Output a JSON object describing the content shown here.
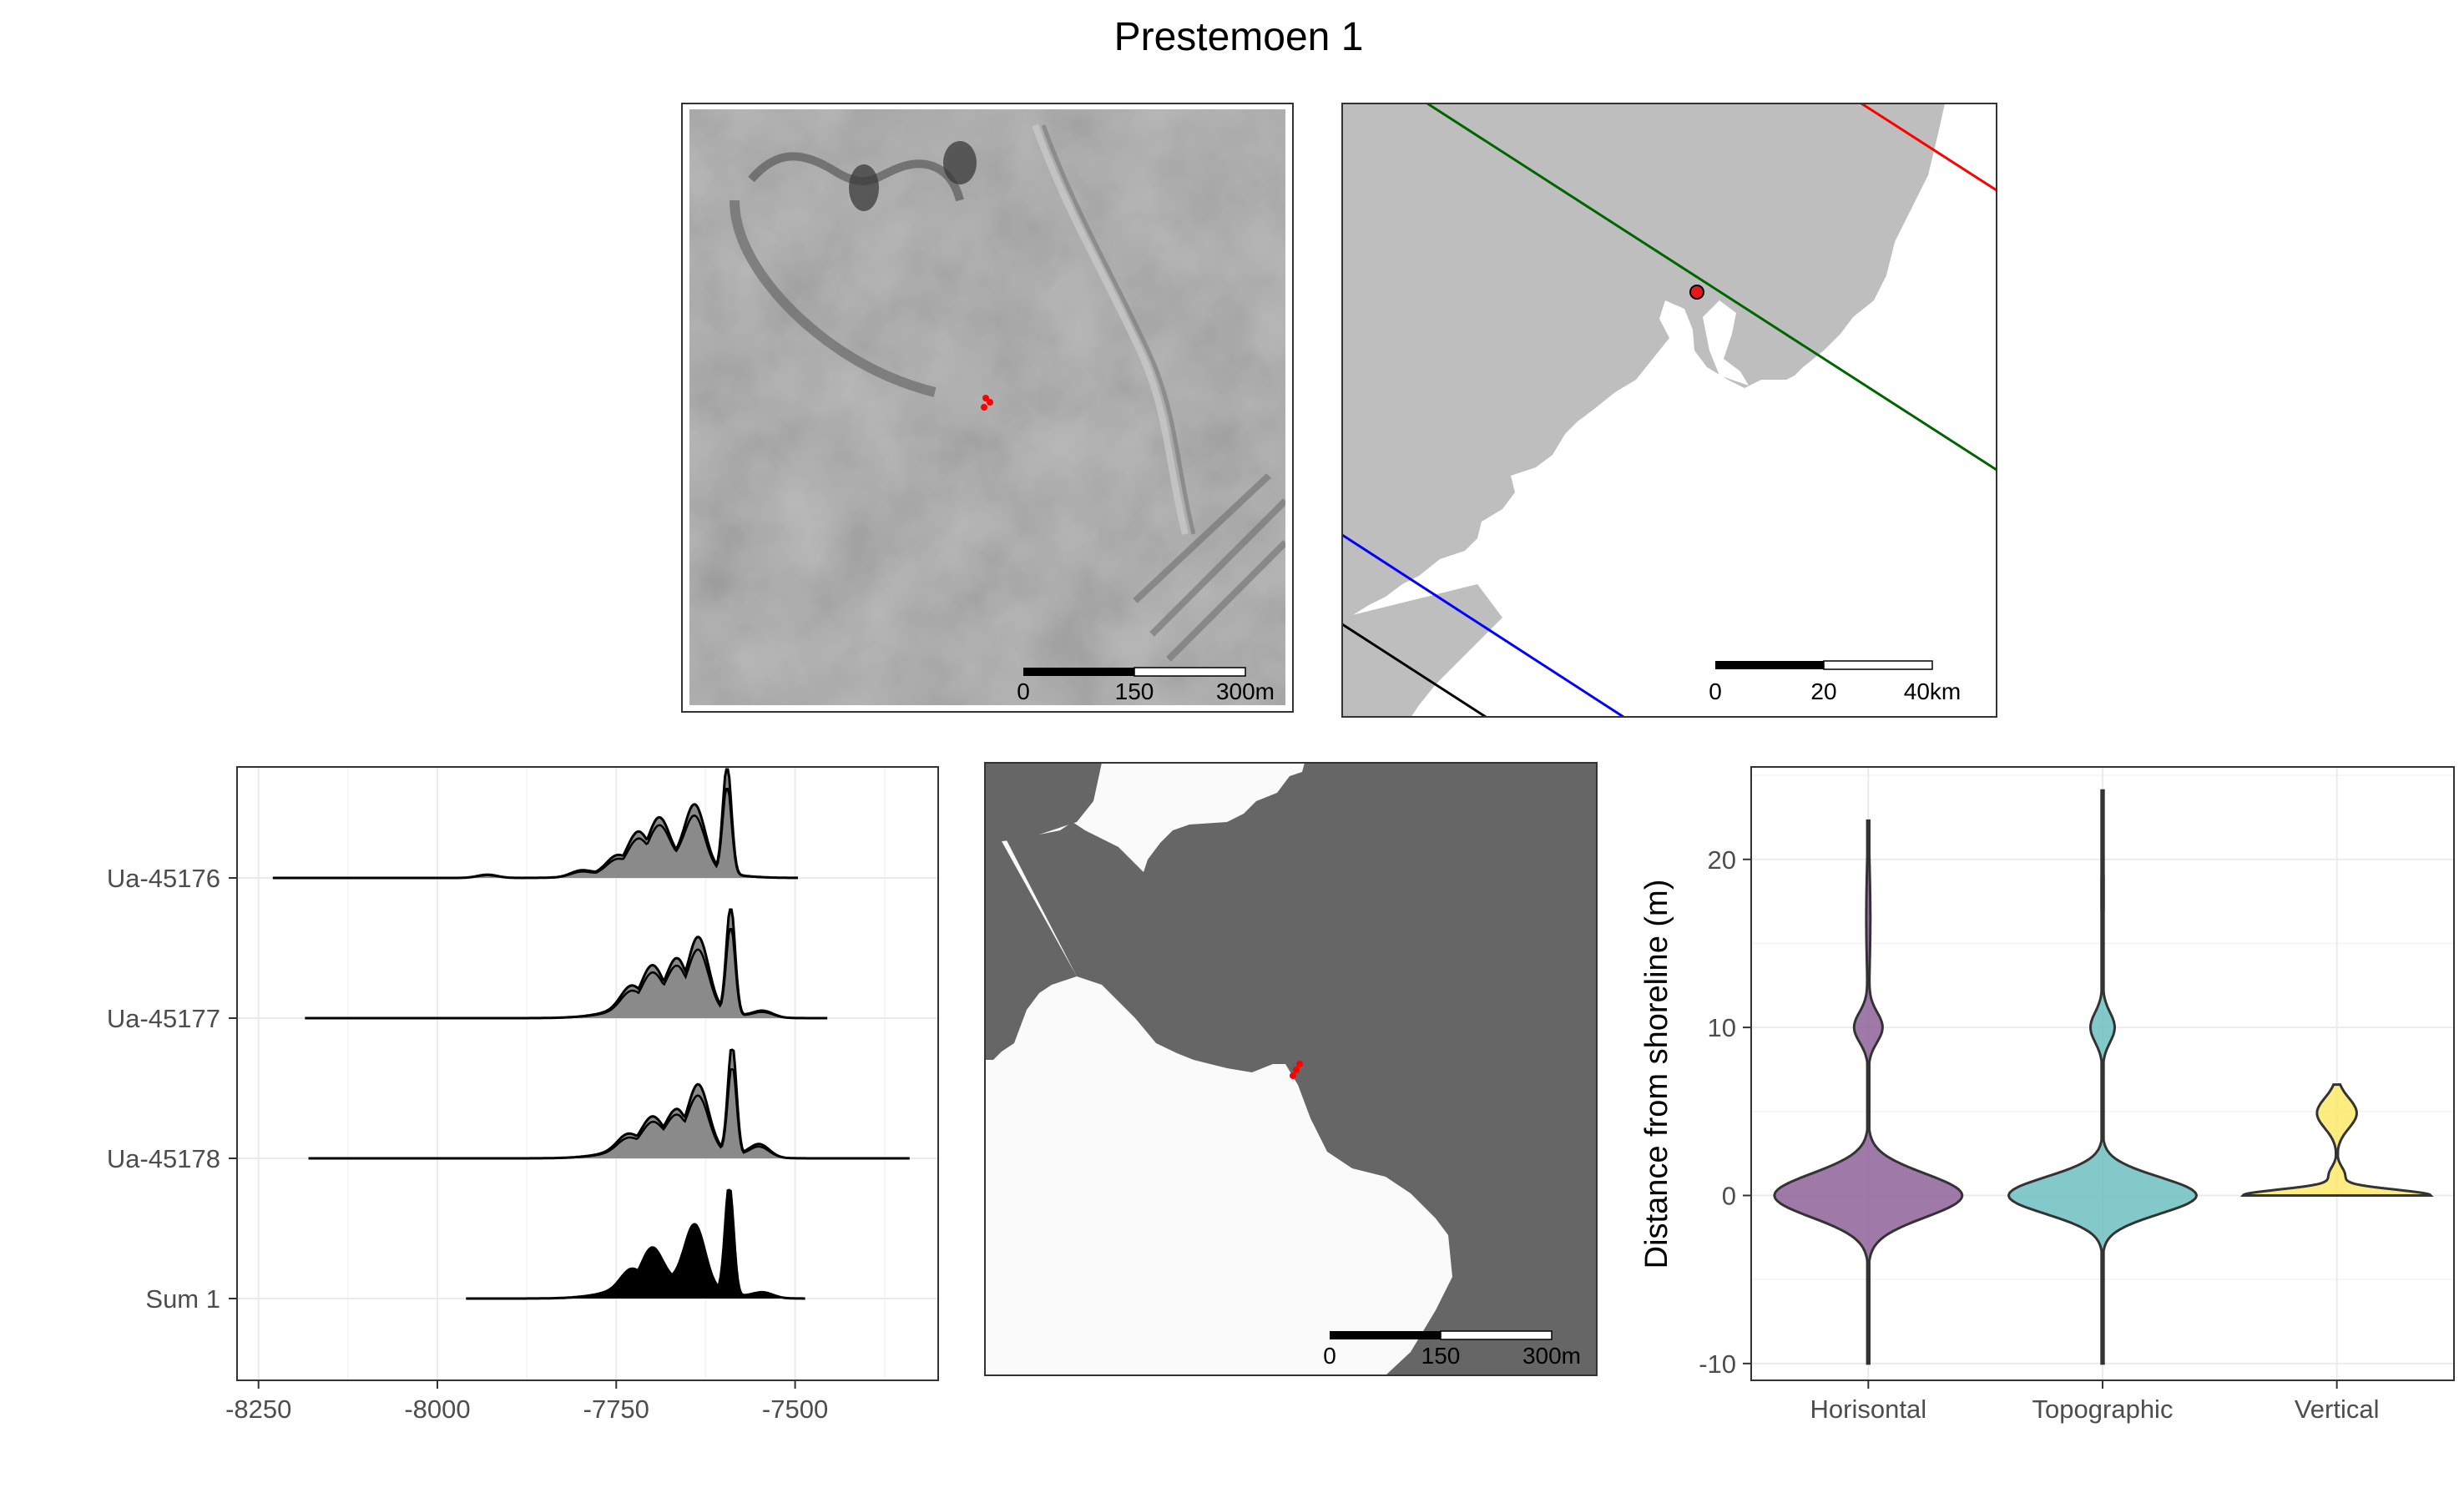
{
  "figure": {
    "title": "Prestemoen 1"
  },
  "maps": {
    "hillshade": {
      "scalebar": {
        "labels": [
          "0",
          "150",
          "300m"
        ]
      }
    },
    "regional": {
      "scalebar": {
        "labels": [
          "0",
          "20",
          "40km"
        ]
      },
      "site_point_color": "#e31a1c",
      "isobase_colors": [
        "#006400",
        "#ff0000",
        "#0000ff",
        "#000000"
      ]
    },
    "shoreline": {
      "scalebar": {
        "labels": [
          "0",
          "150",
          "300m"
        ]
      },
      "sea_color": "#666666",
      "land_color": "#fafafa"
    },
    "site_points_color": "#ff0000"
  },
  "chart_data": [
    {
      "type": "area",
      "panel": "calibrated-dates",
      "categories": [
        "Ua-45176",
        "Ua-45177",
        "Ua-45178",
        "Sum 1"
      ],
      "xlim": [
        -8280,
        -7300
      ],
      "xticks": [
        "-8250",
        "-8000",
        "-7750",
        "-7500"
      ],
      "xtick_values": [
        -8250,
        -8000,
        -7750,
        -7500
      ],
      "grid": true,
      "series": [
        {
          "name": "Ua-45176",
          "range": [
            -8230,
            -7495
          ],
          "peaks": [
            [
              -7595,
              1.0
            ],
            [
              -7640,
              0.55
            ],
            [
              -7690,
              0.38
            ],
            [
              -7720,
              0.28
            ],
            [
              -7750,
              0.12
            ],
            [
              -7800,
              0.05
            ],
            [
              -7930,
              0.03
            ]
          ]
        },
        {
          "name": "Ua-45177",
          "range": [
            -8185,
            -7455
          ],
          "peaks": [
            [
              -7590,
              1.0
            ],
            [
              -7635,
              0.62
            ],
            [
              -7665,
              0.38
            ],
            [
              -7700,
              0.32
            ],
            [
              -7730,
              0.18
            ],
            [
              -7545,
              0.06
            ]
          ]
        },
        {
          "name": "Ua-45178",
          "range": [
            -8180,
            -7340
          ],
          "peaks": [
            [
              -7588,
              1.0
            ],
            [
              -7635,
              0.55
            ],
            [
              -7665,
              0.28
            ],
            [
              -7700,
              0.22
            ],
            [
              -7735,
              0.12
            ],
            [
              -7550,
              0.12
            ]
          ]
        },
        {
          "name": "Sum 1",
          "range": [
            -7960,
            -7485
          ],
          "peaks": [
            [
              -7592,
              1.0
            ],
            [
              -7640,
              0.55
            ],
            [
              -7700,
              0.3
            ],
            [
              -7730,
              0.15
            ],
            [
              -7545,
              0.05
            ]
          ]
        }
      ]
    },
    {
      "type": "violin",
      "panel": "shoreline-distance",
      "ylabel": "Distance from shoreline (m)",
      "categories": [
        "Horisontal",
        "Topographic",
        "Vertical"
      ],
      "colors": [
        "#8e6198",
        "#6fc0bf",
        "#fde96a"
      ],
      "ylim": [
        -11,
        25.5
      ],
      "yticks": [
        "-10",
        "0",
        "10",
        "20"
      ],
      "ytick_values": [
        -10,
        0,
        10,
        20
      ],
      "grid": true,
      "series": [
        {
          "name": "Horisontal",
          "min": -10,
          "max": 22.3,
          "modes": [
            [
              0,
              3.7,
              1.3
            ],
            [
              10,
              0.55,
              0.9
            ],
            [
              16.5,
              0.08,
              3.2
            ]
          ],
          "max_halfwidth": 0.89
        },
        {
          "name": "Topographic",
          "min": -10,
          "max": 24.1,
          "modes": [
            [
              0,
              4.3,
              1.1
            ],
            [
              10,
              0.55,
              0.9
            ],
            [
              18,
              0.05,
              3.5
            ]
          ],
          "max_halfwidth": 0.89
        },
        {
          "name": "Vertical",
          "min": 0,
          "max": 6.6,
          "modes": [
            [
              0,
              8.0,
              0.35
            ],
            [
              4.9,
              1.7,
              0.9
            ],
            [
              1.2,
              0.7,
              0.5
            ]
          ],
          "max_halfwidth": 0.89
        }
      ]
    }
  ]
}
